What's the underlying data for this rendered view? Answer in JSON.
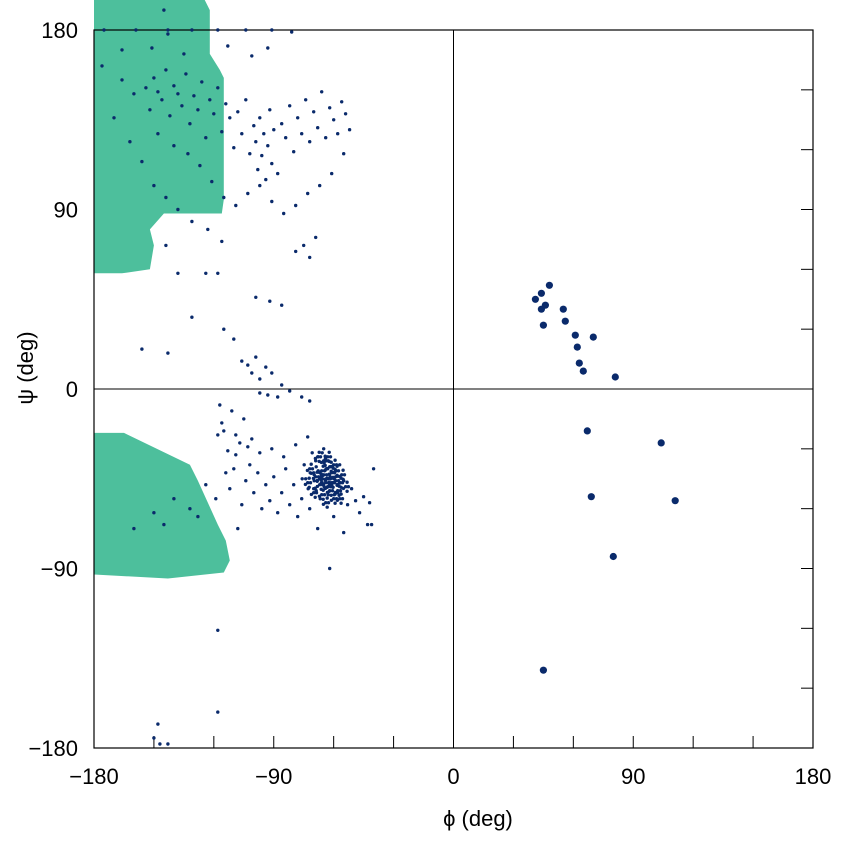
{
  "chart_data": {
    "type": "scatter",
    "title": "",
    "xlabel": "ϕ (deg)",
    "ylabel": "ψ (deg)",
    "xlim": [
      -180,
      180
    ],
    "ylim": [
      -180,
      180
    ],
    "x_ticks": [
      "−180",
      "−90",
      "0",
      "90",
      "180"
    ],
    "y_ticks": [
      "−180",
      "−90",
      "0",
      "90",
      "180"
    ],
    "grid": false,
    "colors": {
      "region": "#4dbf9c",
      "point": "#0a2a6b",
      "axis": "#000000"
    },
    "allowed_regions": [
      [
        [
          -180,
          196
        ],
        [
          -125,
          196
        ],
        [
          -122,
          190
        ],
        [
          -122,
          168
        ],
        [
          -117,
          160
        ],
        [
          -115,
          156
        ],
        [
          -115,
          95
        ],
        [
          -116,
          88
        ],
        [
          -145,
          88
        ],
        [
          -152,
          80
        ],
        [
          -150,
          72
        ],
        [
          -152,
          60
        ],
        [
          -166,
          58
        ],
        [
          -180,
          58
        ]
      ],
      [
        [
          -180,
          -93
        ],
        [
          -143,
          -95
        ],
        [
          -115,
          -92
        ],
        [
          -112,
          -86
        ],
        [
          -114,
          -76
        ],
        [
          -118,
          -68
        ],
        [
          -128,
          -46
        ],
        [
          -132,
          -38
        ],
        [
          -165,
          -22
        ],
        [
          -180,
          -22
        ]
      ]
    ],
    "allowed_regions_note": "",
    "series": [
      {
        "name": "",
        "marker": "small",
        "points": [
          [
            -175,
            180
          ],
          [
            -159,
            180
          ],
          [
            -143,
            178
          ],
          [
            -131,
            180
          ],
          [
            -118,
            180
          ],
          [
            -104,
            180
          ],
          [
            -91,
            180
          ],
          [
            -81,
            179
          ],
          [
            -145,
            190
          ],
          [
            -176,
            162
          ],
          [
            -166,
            170
          ],
          [
            -151,
            171
          ],
          [
            -135,
            168
          ],
          [
            -113,
            172
          ],
          [
            -101,
            167
          ],
          [
            -93,
            171
          ],
          [
            -166,
            155
          ],
          [
            -160,
            148
          ],
          [
            -154,
            151
          ],
          [
            -152,
            140
          ],
          [
            -150,
            156
          ],
          [
            -148,
            149
          ],
          [
            -146,
            145
          ],
          [
            -144,
            160
          ],
          [
            -142,
            137
          ],
          [
            -140,
            152
          ],
          [
            -138,
            148
          ],
          [
            -136,
            142
          ],
          [
            -134,
            158
          ],
          [
            -132,
            133
          ],
          [
            -130,
            147
          ],
          [
            -128,
            140
          ],
          [
            -126,
            154
          ],
          [
            -124,
            126
          ],
          [
            -122,
            145
          ],
          [
            -120,
            138
          ],
          [
            -118,
            151
          ],
          [
            -116,
            129
          ],
          [
            -114,
            143
          ],
          [
            -112,
            136
          ],
          [
            -110,
            121
          ],
          [
            -108,
            139
          ],
          [
            -106,
            128
          ],
          [
            -104,
            145
          ],
          [
            -102,
            118
          ],
          [
            -100,
            132
          ],
          [
            -99,
            124
          ],
          [
            -98,
            110
          ],
          [
            -97,
            136
          ],
          [
            -96,
            117
          ],
          [
            -95,
            128
          ],
          [
            -94,
            105
          ],
          [
            -93,
            122
          ],
          [
            -92,
            140
          ],
          [
            -91,
            113
          ],
          [
            -90,
            130
          ],
          [
            -88,
            108
          ],
          [
            -86,
            133
          ],
          [
            -84,
            126
          ],
          [
            -82,
            142
          ],
          [
            -80,
            119
          ],
          [
            -78,
            136
          ],
          [
            -76,
            128
          ],
          [
            -74,
            145
          ],
          [
            -72,
            124
          ],
          [
            -70,
            139
          ],
          [
            -68,
            131
          ],
          [
            -66,
            149
          ],
          [
            -64,
            126
          ],
          [
            -62,
            141
          ],
          [
            -60,
            135
          ],
          [
            -58,
            128
          ],
          [
            -56,
            144
          ],
          [
            -54,
            138
          ],
          [
            -52,
            130
          ],
          [
            -148,
            128
          ],
          [
            -140,
            122
          ],
          [
            -133,
            118
          ],
          [
            -127,
            112
          ],
          [
            -121,
            104
          ],
          [
            -115,
            96
          ],
          [
            -109,
            92
          ],
          [
            -103,
            98
          ],
          [
            -97,
            102
          ],
          [
            -91,
            94
          ],
          [
            -85,
            88
          ],
          [
            -79,
            92
          ],
          [
            -73,
            98
          ],
          [
            -67,
            102
          ],
          [
            -61,
            108
          ],
          [
            -55,
            118
          ],
          [
            -170,
            136
          ],
          [
            -162,
            124
          ],
          [
            -156,
            114
          ],
          [
            -150,
            102
          ],
          [
            -144,
            96
          ],
          [
            -138,
            90
          ],
          [
            -131,
            84
          ],
          [
            -123,
            80
          ],
          [
            -116,
            74
          ],
          [
            -144,
            72
          ],
          [
            -138,
            58
          ],
          [
            -124,
            58
          ],
          [
            -118,
            58
          ],
          [
            -131,
            36
          ],
          [
            -99,
            46
          ],
          [
            -92,
            44
          ],
          [
            -86,
            42
          ],
          [
            -79,
            69
          ],
          [
            -75,
            72
          ],
          [
            -72,
            66
          ],
          [
            -69,
            76
          ],
          [
            -143,
            18
          ],
          [
            -156,
            20
          ],
          [
            -115,
            30
          ],
          [
            -110,
            25
          ],
          [
            -106,
            14
          ],
          [
            -103,
            12
          ],
          [
            -101,
            8
          ],
          [
            -99,
            16
          ],
          [
            -97,
            5
          ],
          [
            -94,
            11
          ],
          [
            -91,
            8
          ],
          [
            -97,
            -2
          ],
          [
            -93,
            -3
          ],
          [
            -88,
            -4
          ],
          [
            -86,
            2
          ],
          [
            -82,
            -1
          ],
          [
            -76,
            -4
          ],
          [
            -72,
            -6
          ],
          [
            -117,
            -8
          ],
          [
            -116,
            -17
          ],
          [
            -115,
            -21
          ],
          [
            -111,
            -11
          ],
          [
            -109,
            -23
          ],
          [
            -107,
            -27
          ],
          [
            -105,
            -15
          ],
          [
            -103,
            -29
          ],
          [
            -118,
            -23
          ],
          [
            -113,
            -31
          ],
          [
            -109,
            -33
          ],
          [
            -101,
            -25
          ],
          [
            -97,
            -32
          ],
          [
            -91,
            -30
          ],
          [
            -85,
            -34
          ],
          [
            -79,
            -28
          ],
          [
            -73,
            -24
          ],
          [
            -69,
            -36
          ],
          [
            -65,
            -30
          ],
          [
            -63,
            -40
          ],
          [
            -61,
            -48
          ],
          [
            -59,
            -44
          ],
          [
            -58,
            -52
          ],
          [
            -57,
            -38
          ],
          [
            -55,
            -46
          ],
          [
            -53,
            -58
          ],
          [
            -51,
            -50
          ],
          [
            -49,
            -56
          ],
          [
            -47,
            -62
          ],
          [
            -45,
            -54
          ],
          [
            -43,
            -68
          ],
          [
            -70,
            -50
          ],
          [
            -72,
            -60
          ],
          [
            -74,
            -45
          ],
          [
            -76,
            -55
          ],
          [
            -78,
            -64
          ],
          [
            -80,
            -48
          ],
          [
            -82,
            -58
          ],
          [
            -84,
            -40
          ],
          [
            -86,
            -52
          ],
          [
            -88,
            -62
          ],
          [
            -90,
            -44
          ],
          [
            -92,
            -56
          ],
          [
            -94,
            -48
          ],
          [
            -96,
            -60
          ],
          [
            -98,
            -42
          ],
          [
            -100,
            -52
          ],
          [
            -102,
            -38
          ],
          [
            -104,
            -46
          ],
          [
            -106,
            -58
          ],
          [
            -108,
            -70
          ],
          [
            -110,
            -40
          ],
          [
            -112,
            -50
          ],
          [
            -114,
            -42
          ],
          [
            -119,
            -55
          ],
          [
            -124,
            -48
          ],
          [
            -132,
            -60
          ],
          [
            -140,
            -55
          ],
          [
            -150,
            -62
          ],
          [
            -160,
            -70
          ],
          [
            -145,
            -68
          ],
          [
            -128,
            -64
          ],
          [
            -68,
            -70
          ],
          [
            -70,
            -42
          ],
          [
            -60,
            -64
          ],
          [
            -55,
            -72
          ],
          [
            -40,
            -40
          ],
          [
            -42,
            -57
          ],
          [
            -41,
            -68
          ],
          [
            -62,
            -90
          ],
          [
            -118,
            -121
          ],
          [
            -118,
            -162
          ],
          [
            -148,
            -168
          ],
          [
            -150,
            -175
          ],
          [
            -147,
            -178
          ],
          [
            -143,
            -178
          ],
          [
            -143,
            180
          ]
        ]
      },
      {
        "name": "",
        "marker": "small",
        "cluster": true,
        "points": [
          [
            -64,
            -47
          ],
          [
            -63,
            -45
          ],
          [
            -61,
            -42
          ],
          [
            -59,
            -46
          ],
          [
            -66,
            -41
          ],
          [
            -67,
            -48
          ],
          [
            -62,
            -51
          ],
          [
            -58,
            -51
          ],
          [
            -60,
            -38
          ],
          [
            -65,
            -36
          ],
          [
            -69,
            -44
          ],
          [
            -56,
            -43
          ],
          [
            -57,
            -55
          ],
          [
            -64,
            -57
          ],
          [
            -70,
            -52
          ],
          [
            -72,
            -40
          ],
          [
            -54,
            -49
          ],
          [
            -63,
            -34
          ],
          [
            -68,
            -34
          ],
          [
            -73,
            -47
          ],
          [
            -60,
            -55
          ],
          [
            -65,
            -43
          ],
          [
            -59,
            -41
          ],
          [
            -62,
            -39
          ],
          [
            -66,
            -53
          ],
          [
            -63,
            -49
          ],
          [
            -61,
            -47
          ],
          [
            -57,
            -47
          ],
          [
            -67,
            -45
          ]
        ]
      },
      {
        "name": "",
        "marker": "large",
        "points": [
          [
            41,
            45
          ],
          [
            44,
            48
          ],
          [
            46,
            42
          ],
          [
            48,
            52
          ],
          [
            44,
            40
          ],
          [
            45,
            32
          ],
          [
            55,
            40
          ],
          [
            56,
            34
          ],
          [
            61,
            27
          ],
          [
            62,
            21
          ],
          [
            63,
            13
          ],
          [
            65,
            9
          ],
          [
            70,
            26
          ],
          [
            81,
            6
          ],
          [
            67,
            -21
          ],
          [
            69,
            -54
          ],
          [
            80,
            -84
          ],
          [
            104,
            -27
          ],
          [
            111,
            -56
          ],
          [
            45,
            -141
          ]
        ]
      }
    ]
  }
}
